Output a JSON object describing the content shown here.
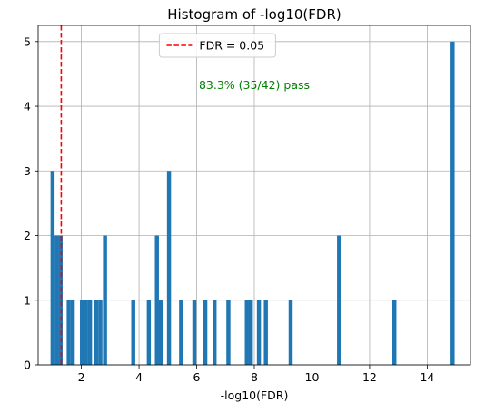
{
  "chart_data": {
    "type": "bar",
    "title": "Histogram of -log10(FDR)",
    "xlabel": "-log10(FDR)",
    "ylabel": "",
    "xlim": [
      0.5,
      15.5
    ],
    "ylim": [
      0,
      5.25
    ],
    "xticks": [
      2,
      4,
      6,
      8,
      10,
      12,
      14
    ],
    "yticks": [
      0,
      1,
      2,
      3,
      4,
      5
    ],
    "grid": true,
    "bar_color": "#1f77b4",
    "bin_width": 0.14,
    "bins": [
      {
        "x": 1.0,
        "count": 3
      },
      {
        "x": 1.14,
        "count": 2
      },
      {
        "x": 1.28,
        "count": 2
      },
      {
        "x": 1.56,
        "count": 1
      },
      {
        "x": 1.7,
        "count": 1
      },
      {
        "x": 2.02,
        "count": 1
      },
      {
        "x": 2.16,
        "count": 1
      },
      {
        "x": 2.3,
        "count": 1
      },
      {
        "x": 2.52,
        "count": 1
      },
      {
        "x": 2.66,
        "count": 1
      },
      {
        "x": 2.82,
        "count": 2
      },
      {
        "x": 3.8,
        "count": 1
      },
      {
        "x": 4.34,
        "count": 1
      },
      {
        "x": 4.62,
        "count": 2
      },
      {
        "x": 4.76,
        "count": 1
      },
      {
        "x": 5.04,
        "count": 3
      },
      {
        "x": 5.46,
        "count": 1
      },
      {
        "x": 5.92,
        "count": 1
      },
      {
        "x": 6.3,
        "count": 1
      },
      {
        "x": 6.62,
        "count": 1
      },
      {
        "x": 7.1,
        "count": 1
      },
      {
        "x": 7.74,
        "count": 1
      },
      {
        "x": 7.88,
        "count": 1
      },
      {
        "x": 8.16,
        "count": 1
      },
      {
        "x": 8.4,
        "count": 1
      },
      {
        "x": 9.26,
        "count": 1
      },
      {
        "x": 10.94,
        "count": 2
      },
      {
        "x": 12.86,
        "count": 1
      },
      {
        "x": 14.88,
        "count": 5
      }
    ],
    "threshold": {
      "x": 1.30103,
      "label": "FDR = 0.05",
      "color": "#ff0000",
      "style": "dashed"
    },
    "legend": {
      "placement": "upper-center",
      "entries": [
        "FDR = 0.05"
      ]
    },
    "annotation": {
      "text": "83.3% (35/42) pass",
      "color": "#008000"
    }
  }
}
